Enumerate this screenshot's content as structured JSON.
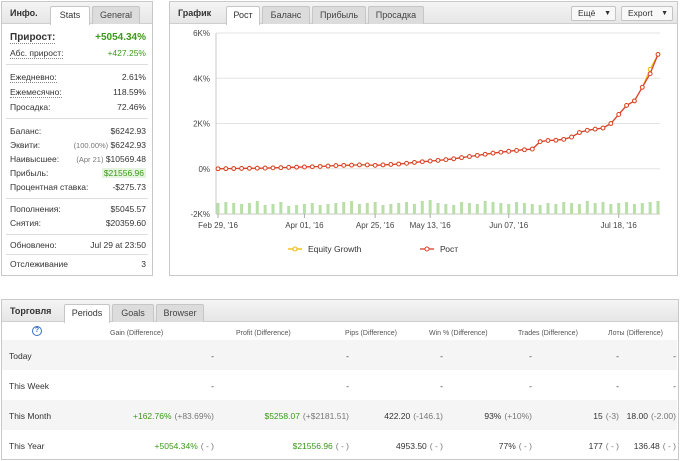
{
  "info": {
    "title": "Инфо.",
    "tabs": [
      "Stats",
      "General"
    ],
    "gain_label": "Прирост:",
    "gain_value": "+5054.34%",
    "abs_gain_label": "Абс. прирост:",
    "abs_gain_value": "+427.25%",
    "daily_label": "Ежедневно:",
    "daily_value": "2.61%",
    "monthly_label": "Ежемесячно:",
    "monthly_value": "118.59%",
    "drawdown_label": "Просадка:",
    "drawdown_value": "72.46%",
    "balance_label": "Баланс:",
    "balance_value": "$6242.93",
    "equity_label": "Эквити:",
    "equity_pct": "(100.00%)",
    "equity_value": "$6242.93",
    "highest_label": "Наивысшее:",
    "highest_date": "(Apr 21)",
    "highest_value": "$10569.48",
    "profit_label": "Прибыль:",
    "profit_value": "$21556.96",
    "interest_label": "Процентная ставка:",
    "interest_value": "-$275.73",
    "deposits_label": "Пополнения:",
    "deposits_value": "$5045.57",
    "withdrawals_label": "Снятия:",
    "withdrawals_value": "$20359.60",
    "updated_label": "Обновлено:",
    "updated_value": "Jul 29 at 23:50",
    "tracking_label": "Отслеживание",
    "tracking_value": "3"
  },
  "chartpanel": {
    "title": "График",
    "tabs": [
      "Рост",
      "Баланс",
      "Прибыль",
      "Просадка"
    ],
    "more_button": "Ещё",
    "export_button": "Export"
  },
  "chart_data": {
    "type": "line",
    "yticks": [
      "6K%",
      "4K%",
      "2K%",
      "0%",
      "-2K%"
    ],
    "y_tick_values": [
      6000,
      4000,
      2000,
      0,
      -2000
    ],
    "ylim": [
      -2000,
      6000
    ],
    "xticks": [
      "Feb 29, '16",
      "Apr 01, '16",
      "Apr 25, '16",
      "May 13, '16",
      "Jun 07, '16",
      "Jul 18, '16"
    ],
    "xtick_index": [
      0,
      11,
      20,
      27,
      37,
      51
    ],
    "n_points": 57,
    "series": [
      {
        "name": "Equity Growth",
        "color": "#f0b800",
        "values": [
          0,
          5,
          10,
          15,
          20,
          25,
          30,
          40,
          50,
          60,
          70,
          80,
          90,
          100,
          120,
          140,
          150,
          160,
          170,
          170,
          150,
          170,
          190,
          210,
          240,
          280,
          310,
          340,
          370,
          400,
          440,
          490,
          540,
          590,
          640,
          690,
          730,
          770,
          810,
          840,
          870,
          1200,
          1250,
          1260,
          1300,
          1400,
          1600,
          1700,
          1750,
          1800,
          2000,
          2400,
          2800,
          3000,
          3600,
          4400,
          5054.34
        ]
      },
      {
        "name": "Рост",
        "color": "#d9402a",
        "values": [
          0,
          5,
          10,
          15,
          20,
          25,
          30,
          40,
          50,
          60,
          70,
          80,
          90,
          100,
          120,
          140,
          150,
          160,
          170,
          170,
          150,
          170,
          190,
          210,
          240,
          280,
          310,
          340,
          370,
          400,
          440,
          490,
          540,
          590,
          640,
          690,
          730,
          770,
          810,
          840,
          870,
          1200,
          1250,
          1260,
          1300,
          1400,
          1600,
          1700,
          1750,
          1800,
          2000,
          2400,
          2800,
          3000,
          3600,
          4200,
          5054.34
        ]
      }
    ],
    "bars": [
      70,
      80,
      70,
      60,
      70,
      90,
      50,
      60,
      80,
      40,
      50,
      60,
      70,
      50,
      60,
      70,
      80,
      90,
      60,
      70,
      80,
      50,
      60,
      70,
      80,
      60,
      90,
      100,
      70,
      60,
      50,
      80,
      70,
      60,
      90,
      80,
      70,
      60,
      80,
      70,
      60,
      50,
      70,
      60,
      80,
      70,
      60,
      90,
      70,
      80,
      60,
      70,
      80,
      60,
      70,
      80,
      90
    ]
  },
  "trading": {
    "title": "Торговля",
    "tabs": [
      "Periods",
      "Goals",
      "Browser"
    ],
    "help_icon": "?",
    "columns": [
      "Gain (Difference)",
      "Profit (Difference)",
      "Pips (Difference)",
      "Win % (Difference)",
      "Trades (Difference)",
      "Лоты (Difference)"
    ],
    "rows": [
      {
        "label": "Today",
        "gain": "-",
        "gain_d": "",
        "profit": "-",
        "profit_d": "",
        "pips": "-",
        "pips_d": "",
        "win": "-",
        "win_d": "",
        "trades": "-",
        "trades_d": "",
        "lots": "-",
        "lots_d": ""
      },
      {
        "label": "This Week",
        "gain": "-",
        "gain_d": "",
        "profit": "-",
        "profit_d": "",
        "pips": "-",
        "pips_d": "",
        "win": "-",
        "win_d": "",
        "trades": "-",
        "trades_d": "",
        "lots": "-",
        "lots_d": ""
      },
      {
        "label": "This Month",
        "gain": "+162.76%",
        "gain_d": "(+83.69%)",
        "profit": "$5258.07",
        "profit_d": "(+$2181.51)",
        "pips": "422.20",
        "pips_d": "(-146.1)",
        "win": "93%",
        "win_d": "(+10%)",
        "trades": "15",
        "trades_d": "(-3)",
        "lots": "18.00",
        "lots_d": "(-2.00)"
      },
      {
        "label": "This Year",
        "gain": "+5054.34%",
        "gain_d": "( - )",
        "profit": "$21556.96",
        "profit_d": "( - )",
        "pips": "4953.50",
        "pips_d": "( - )",
        "win": "77%",
        "win_d": "( - )",
        "trades": "177",
        "trades_d": "( - )",
        "lots": "136.48",
        "lots_d": "( - )"
      }
    ]
  }
}
